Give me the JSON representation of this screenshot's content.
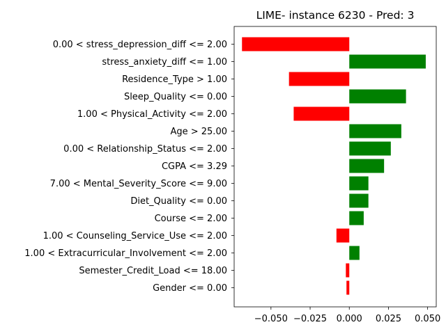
{
  "chart_data": {
    "type": "bar",
    "orientation": "horizontal",
    "title": "LIME- instance 6230 - Pred: 3",
    "xlabel": "",
    "ylabel": "",
    "xlim": [
      -0.0735,
      0.0555
    ],
    "xticks": [
      -0.05,
      -0.025,
      0.0,
      0.025,
      0.05
    ],
    "xtick_labels": [
      "−0.050",
      "−0.025",
      "0.000",
      "0.025",
      "0.050"
    ],
    "grid": false,
    "legend": "none",
    "colors": {
      "positive": "#008000",
      "negative": "#ff0000"
    },
    "categories": [
      "0.00 < stress_depression_diff <= 2.00",
      "stress_anxiety_diff <= 1.00",
      "Residence_Type > 1.00",
      "Sleep_Quality <= 0.00",
      "1.00 < Physical_Activity <= 2.00",
      "Age > 25.00",
      "0.00 < Relationship_Status <= 2.00",
      "CGPA <= 3.29",
      "7.00 < Mental_Severity_Score <= 9.00",
      "Diet_Quality <= 0.00",
      "Course <= 2.00",
      "1.00 < Counseling_Service_Use <= 2.00",
      "1.00 < Extracurricular_Involvement <= 2.00",
      "Semester_Credit_Load <= 18.00",
      "Gender <= 0.00"
    ],
    "values": [
      -0.0685,
      0.0488,
      -0.0385,
      0.0362,
      -0.0355,
      0.0332,
      0.0265,
      0.0222,
      0.0122,
      0.0122,
      0.0092,
      -0.0082,
      0.0065,
      -0.0022,
      -0.0018
    ]
  }
}
